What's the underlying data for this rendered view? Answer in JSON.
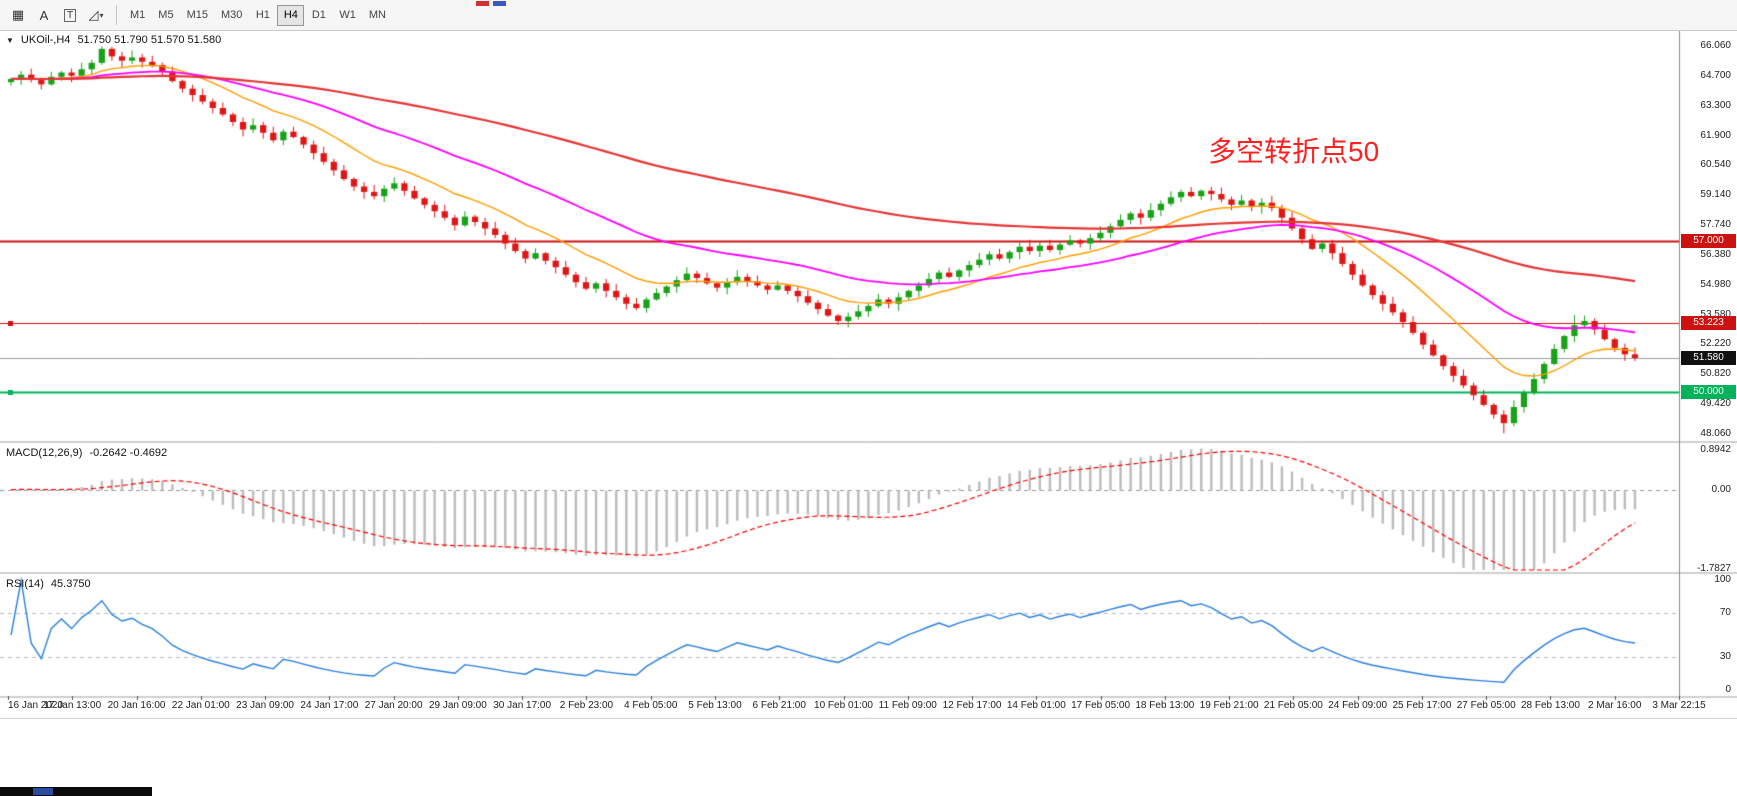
{
  "toolbar": {
    "tools": [
      {
        "name": "chart-grid-tool",
        "glyph": "▦"
      },
      {
        "name": "font-tool",
        "glyph": "A"
      },
      {
        "name": "text-tool",
        "glyph": "T"
      },
      {
        "name": "shapes-tool",
        "glyph": "◿",
        "caret": "▾"
      }
    ],
    "timeframes": [
      {
        "label": "M1",
        "selected": false
      },
      {
        "label": "M5",
        "selected": false
      },
      {
        "label": "M15",
        "selected": false
      },
      {
        "label": "M30",
        "selected": false
      },
      {
        "label": "H1",
        "selected": false
      },
      {
        "label": "H4",
        "selected": true
      },
      {
        "label": "D1",
        "selected": false
      },
      {
        "label": "W1",
        "selected": false
      },
      {
        "label": "MN",
        "selected": false
      }
    ]
  },
  "chart": {
    "dropdown_glyph": "▼",
    "symbol_period": "UKOil-,H4",
    "ohlc_text": "51.750 51.790 51.570 51.580",
    "annotation": {
      "text": "多空转折点50",
      "color": "#ff2020"
    },
    "price_axis_labels": [
      "66.060",
      "64.700",
      "63.300",
      "61.900",
      "60.540",
      "59.140",
      "57.740",
      "56.380",
      "54.980",
      "53.580",
      "52.220",
      "50.820",
      "49.420",
      "48.060"
    ],
    "price_range": {
      "min": 47.72,
      "max": 66.78
    },
    "hlines": [
      {
        "price": 57.0,
        "label": "57.000",
        "color": "#cc1111",
        "width": 2
      },
      {
        "price": 53.223,
        "label": "53.223",
        "color": "#cc1111",
        "width": 1
      },
      {
        "price": 50.0,
        "label": "50.000",
        "color": "#00b25a",
        "width": 2
      }
    ],
    "current_price": {
      "value": 51.58,
      "label": "51.580"
    }
  },
  "macd_panel": {
    "label": "MACD(12,26,9)",
    "values_text": "-0.2642 -0.4692",
    "axis_labels": [
      {
        "value": 0.8942,
        "text": "0.8942"
      },
      {
        "value": 0,
        "text": "0.00"
      },
      {
        "value": -1.7827,
        "text": "-1.7827"
      }
    ],
    "range": {
      "min": -1.85,
      "max": 1.05
    }
  },
  "rsi_panel": {
    "label": "RSI(14)",
    "value_text": "45.3750",
    "axis_labels": [
      {
        "value": 100,
        "text": "100"
      },
      {
        "value": 70,
        "text": "70"
      },
      {
        "value": 30,
        "text": "30"
      },
      {
        "value": 0,
        "text": "0"
      }
    ],
    "levels": [
      70,
      30
    ],
    "range": {
      "min": -5,
      "max": 105
    }
  },
  "chart_data": {
    "type": "candlestick",
    "symbol": "UKOil-",
    "timeframe": "H4",
    "title": "UKOil-,H4 51.750 51.790 51.570 51.580",
    "first_open": 64.4,
    "closes": [
      64.55,
      64.75,
      64.5,
      64.3,
      64.65,
      64.85,
      64.7,
      65.0,
      65.3,
      65.95,
      65.6,
      65.4,
      65.55,
      65.35,
      65.2,
      64.9,
      64.45,
      64.1,
      63.8,
      63.5,
      63.2,
      62.9,
      62.55,
      62.2,
      62.4,
      62.05,
      61.7,
      62.1,
      61.85,
      61.5,
      61.1,
      60.7,
      60.3,
      59.9,
      59.55,
      59.3,
      59.1,
      59.45,
      59.7,
      59.35,
      59.0,
      58.7,
      58.4,
      58.1,
      57.75,
      58.15,
      57.9,
      57.6,
      57.3,
      56.9,
      56.55,
      56.2,
      56.45,
      56.1,
      55.8,
      55.45,
      55.1,
      54.8,
      55.05,
      54.7,
      54.4,
      54.1,
      53.9,
      54.3,
      54.6,
      54.9,
      55.2,
      55.5,
      55.3,
      55.05,
      54.85,
      55.1,
      55.35,
      55.15,
      54.95,
      54.75,
      54.95,
      54.7,
      54.45,
      54.15,
      53.85,
      53.55,
      53.3,
      53.5,
      53.75,
      54.0,
      54.3,
      54.1,
      54.4,
      54.7,
      54.95,
      55.25,
      55.55,
      55.35,
      55.65,
      55.9,
      56.15,
      56.4,
      56.2,
      56.5,
      56.75,
      56.55,
      56.8,
      56.6,
      56.85,
      57.05,
      56.9,
      57.15,
      57.4,
      57.7,
      58.0,
      58.3,
      58.1,
      58.45,
      58.75,
      59.05,
      59.3,
      59.1,
      59.35,
      59.2,
      58.95,
      58.7,
      58.9,
      58.6,
      58.8,
      58.55,
      58.1,
      57.6,
      57.1,
      56.65,
      56.9,
      56.45,
      55.95,
      55.45,
      54.95,
      54.5,
      54.1,
      53.7,
      53.25,
      52.75,
      52.2,
      51.7,
      51.2,
      50.75,
      50.3,
      49.85,
      49.4,
      48.95,
      48.55,
      49.3,
      49.95,
      50.6,
      51.3,
      52.0,
      52.6,
      53.1,
      53.3,
      52.9,
      52.45,
      52.05,
      51.75,
      51.58
    ],
    "wick_overrides": {
      "9": {
        "high": 66.06
      },
      "148": {
        "low": 48.08
      },
      "155": {
        "high": 53.58
      },
      "156": {
        "high": 53.55
      }
    },
    "up_color": "#18a218",
    "down_color": "#e01616",
    "moving_averages": [
      {
        "name": "fast",
        "period": 13,
        "color": "#ff9d00",
        "width": 1.4
      },
      {
        "name": "medium",
        "period": 34,
        "color": "#ff00ff",
        "width": 1.8
      },
      {
        "name": "slow",
        "period": 100,
        "color": "#e53535",
        "width": 2.2
      }
    ],
    "macd": {
      "fast": 12,
      "slow": 26,
      "signal": 9,
      "histogram_color": "#bcbcbc",
      "signal_color": "#ff0000"
    },
    "rsi": {
      "period": 14,
      "color": "#2a7fde"
    },
    "time_labels": [
      "16 Jan 2020",
      "17 Jan 13:00",
      "20 Jan 16:00",
      "22 Jan 01:00",
      "23 Jan 09:00",
      "24 Jan 17:00",
      "27 Jan 20:00",
      "29 Jan 09:00",
      "30 Jan 17:00",
      "2 Feb 23:00",
      "4 Feb 05:00",
      "5 Feb 13:00",
      "6 Feb 21:00",
      "10 Feb 01:00",
      "11 Feb 09:00",
      "12 Feb 17:00",
      "14 Feb 01:00",
      "17 Feb 05:00",
      "18 Feb 13:00",
      "19 Feb 21:00",
      "21 Feb 05:00",
      "24 Feb 09:00",
      "25 Feb 17:00",
      "27 Feb 05:00",
      "28 Feb 13:00",
      "2 Mar 16:00",
      "3 Mar 22:15"
    ]
  }
}
